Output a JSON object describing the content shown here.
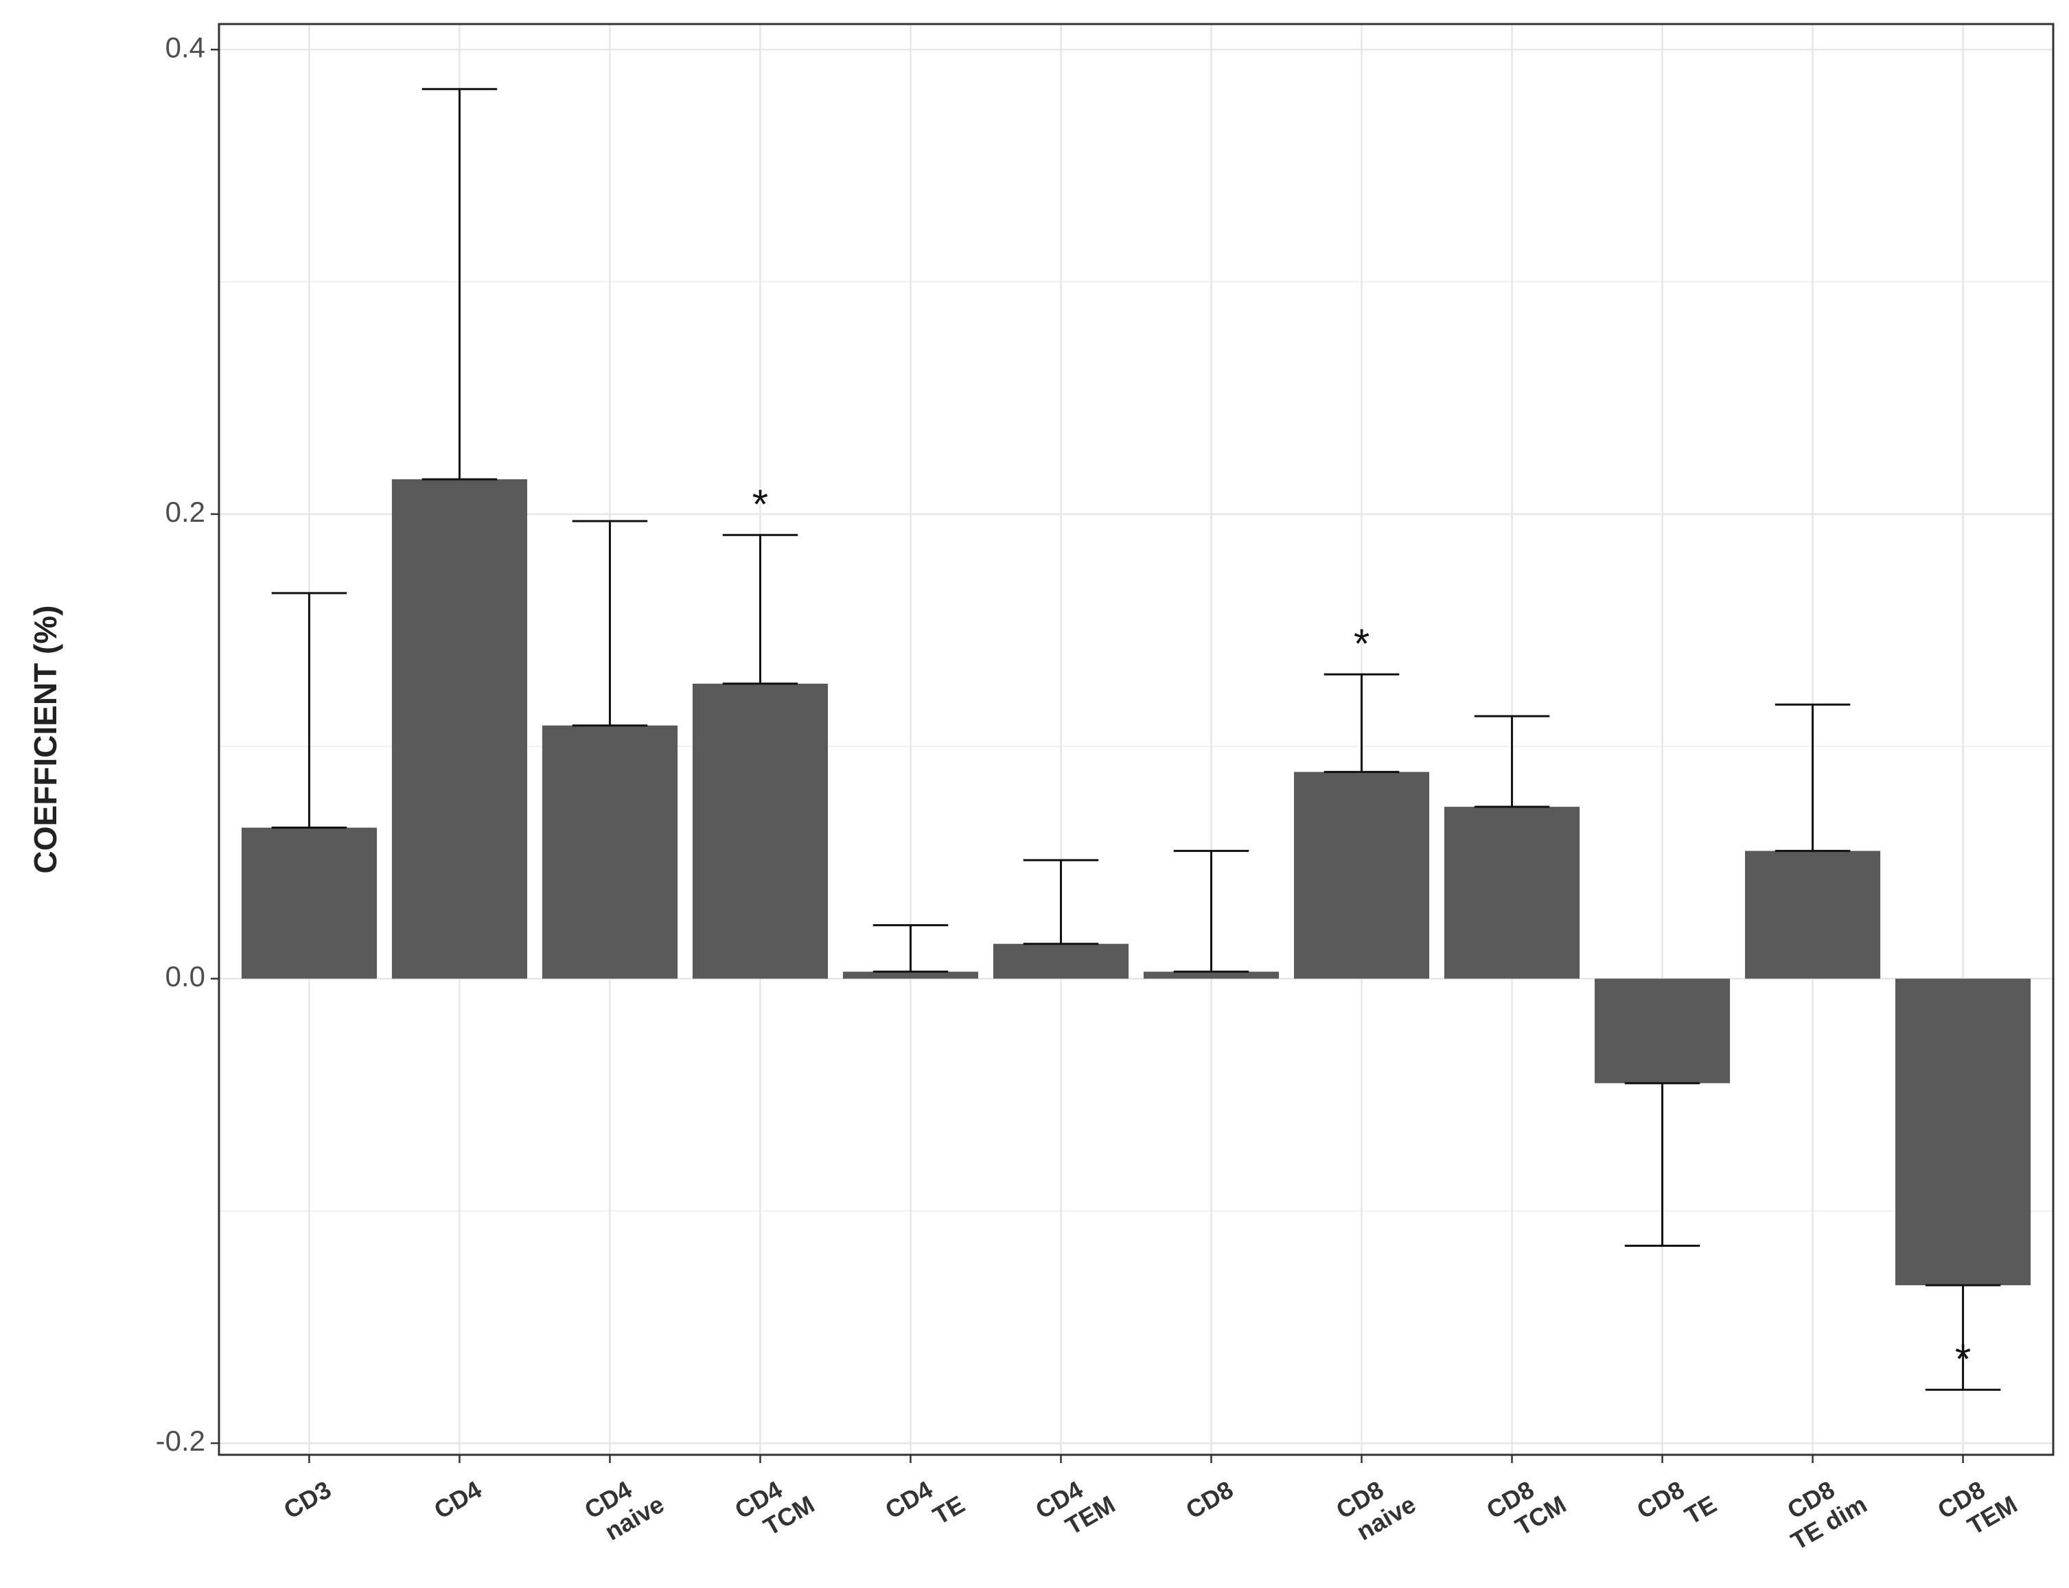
{
  "chart_data": {
    "type": "bar",
    "y_label": "COEFFICIENT (%)",
    "categories": [
      [
        "CD3"
      ],
      [
        "CD4"
      ],
      [
        "CD4",
        "naive"
      ],
      [
        "CD4",
        "TCM"
      ],
      [
        "CD4",
        "TE"
      ],
      [
        "CD4",
        "TEM"
      ],
      [
        "CD8"
      ],
      [
        "CD8",
        "naive"
      ],
      [
        "CD8",
        "TCM"
      ],
      [
        "CD8",
        "TE"
      ],
      [
        "CD8",
        "TE dim"
      ],
      [
        "CD8",
        "TEM"
      ]
    ],
    "values": [
      0.065,
      0.215,
      0.109,
      0.127,
      0.003,
      0.015,
      0.003,
      0.089,
      0.074,
      -0.045,
      0.055,
      -0.132
    ],
    "errors": [
      0.101,
      0.168,
      0.088,
      0.064,
      0.02,
      0.036,
      0.052,
      0.042,
      0.039,
      0.07,
      0.063,
      0.045
    ],
    "significant": [
      false,
      false,
      false,
      true,
      false,
      false,
      false,
      true,
      false,
      false,
      false,
      true
    ],
    "significance_label": "*",
    "color": "#595959",
    "ylim": [
      -0.205,
      0.411
    ],
    "yticks": [
      -0.2,
      {
        "value": 0,
        "label": "0.0"
      },
      0.2,
      0.4
    ],
    "minor_yticks": [
      -0.1,
      0.1,
      0.3
    ],
    "grid": true
  }
}
